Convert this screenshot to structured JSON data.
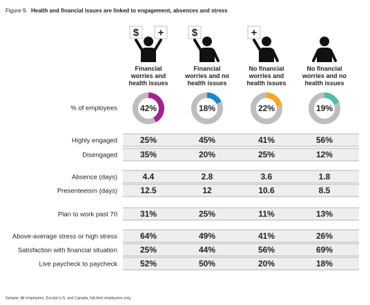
{
  "header": {
    "figure": "Figure 9.",
    "title": "Health and financial issues are linked to engagement, absences and stress"
  },
  "columns": [
    {
      "label": [
        "Financial",
        "worries and",
        "health issues"
      ],
      "color": "#a3238e",
      "icons": [
        "$",
        "+"
      ],
      "share": {
        "value": 42,
        "label": "42%"
      }
    },
    {
      "label": [
        "Financial",
        "worries and no",
        "health issues"
      ],
      "color": "#1a8ac6",
      "icons": [
        "$"
      ],
      "share": {
        "value": 18,
        "label": "18%"
      }
    },
    {
      "label": [
        "No financial",
        "worries and",
        "health issues"
      ],
      "color": "#f5a623",
      "icons": [
        "+"
      ],
      "share": {
        "value": 22,
        "label": "22%"
      }
    },
    {
      "label": [
        "No financial",
        "worries and no",
        "health issues"
      ],
      "color": "#4dbfa8",
      "icons": [],
      "share": {
        "value": 19,
        "label": "19%"
      }
    }
  ],
  "share_label": "% of employees",
  "table": {
    "rows": [
      {
        "label": "Highly engaged",
        "cells": [
          "25%",
          "45%",
          "41%",
          "56%"
        ]
      },
      {
        "label": "Disengaged",
        "cells": [
          "35%",
          "20%",
          "25%",
          "12%"
        ]
      },
      {
        "label": "Absence (days)",
        "cells": [
          "4.4",
          "2.8",
          "3.6",
          "1.8"
        ]
      },
      {
        "label": "Presenteeism (days)",
        "cells": [
          "12.5",
          "12",
          "10.6",
          "8.5"
        ]
      },
      {
        "label": "Plan to work past 70",
        "cells": [
          "31%",
          "25%",
          "11%",
          "13%"
        ]
      },
      {
        "label": "Above-average stress or high stress",
        "cells": [
          "64%",
          "49%",
          "41%",
          "26%"
        ]
      },
      {
        "label": "Satisfaction with financial situation",
        "cells": [
          "25%",
          "44%",
          "56%",
          "69%"
        ]
      },
      {
        "label": "Live paycheck to paycheck",
        "cells": [
          "52%",
          "50%",
          "20%",
          "18%"
        ]
      }
    ]
  },
  "footnote": "Sample: All employees. Except U.S. and Canada, full-time employees only."
}
